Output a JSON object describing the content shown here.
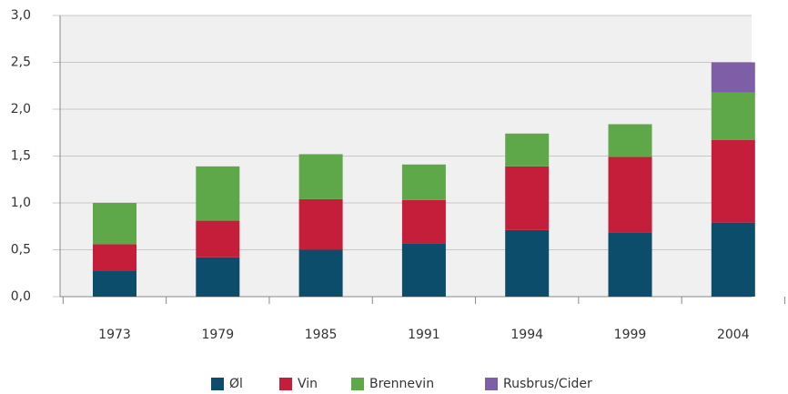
{
  "chart_data": {
    "type": "stacked_bar",
    "categories": [
      "1973",
      "1979",
      "1985",
      "1991",
      "1994",
      "1999",
      "2004"
    ],
    "series": [
      {
        "name": "Øl",
        "color": "#0c4d6b",
        "values": [
          0.28,
          0.42,
          0.5,
          0.57,
          0.71,
          0.68,
          0.79
        ]
      },
      {
        "name": "Vin",
        "color": "#c41e3a",
        "values": [
          0.28,
          0.39,
          0.54,
          0.46,
          0.68,
          0.81,
          0.88
        ]
      },
      {
        "name": "Brennevin",
        "color": "#5fa84a",
        "values": [
          0.44,
          0.58,
          0.48,
          0.38,
          0.35,
          0.35,
          0.51
        ]
      },
      {
        "name": "Rusbrus/Cider",
        "color": "#7e5ea6",
        "values": [
          0,
          0,
          0,
          0,
          0,
          0,
          0.32
        ]
      }
    ],
    "ylim": [
      0,
      3
    ],
    "yticks": [
      {
        "value": 0,
        "label": "0,0"
      },
      {
        "value": 0.5,
        "label": "0,5"
      },
      {
        "value": 1,
        "label": "1,0"
      },
      {
        "value": 1.5,
        "label": "1,5"
      },
      {
        "value": 2,
        "label": "2,0"
      },
      {
        "value": 2.5,
        "label": "2,5"
      },
      {
        "value": 3,
        "label": "3,0"
      }
    ],
    "grid": true
  }
}
